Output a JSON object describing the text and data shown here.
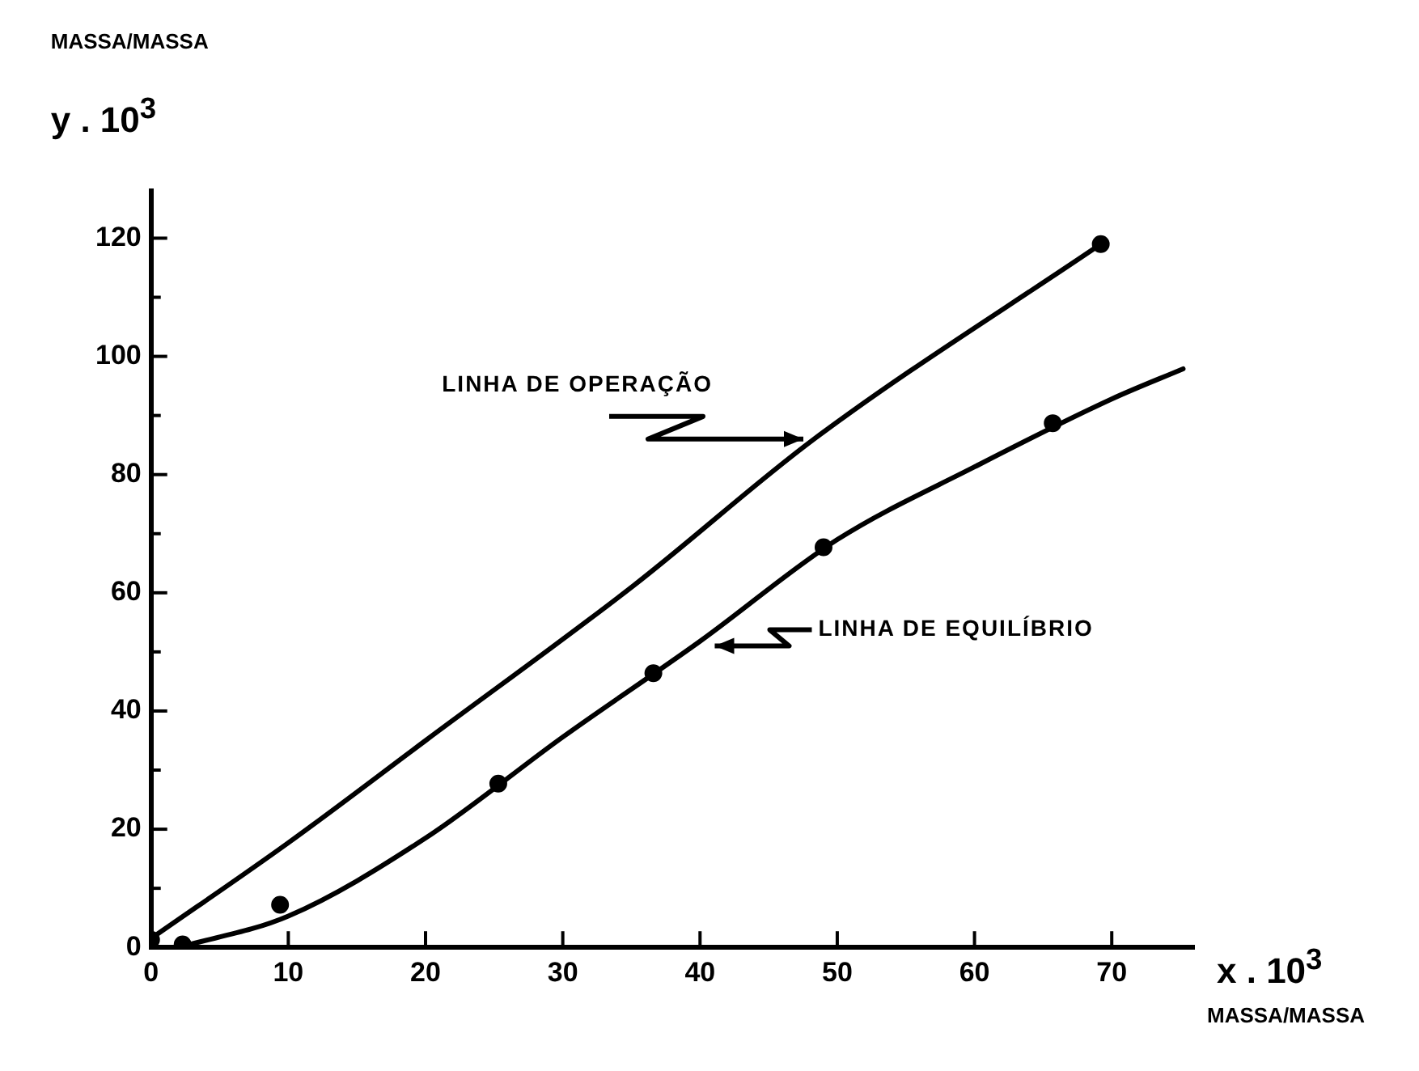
{
  "chart_data": {
    "type": "line",
    "xlabel": "x . 10$^{3}$",
    "ylabel": "y . 10$^{3}$",
    "annotations": [
      "MASSA/MASSA",
      "MASSA/MASSA",
      {
        "text": "LINHA DE OPERAÇÃO",
        "x": 48,
        "y": 86
      },
      {
        "text": "LINHA DE EQUILÍBRIO",
        "x": 40.6,
        "y": 51
      }
    ],
    "series": [
      {
        "type": "line",
        "color": "#000000",
        "x": [
          0,
          10,
          20,
          35.2,
          48.3,
          69.2
        ],
        "values": [
          1.5,
          17.7,
          35,
          61.3,
          86,
          119
        ]
      },
      {
        "type": "line",
        "color": "#000000",
        "x": [
          2,
          10,
          20,
          30,
          40,
          50,
          60,
          70,
          75.2
        ],
        "values": [
          0,
          5.3,
          18.5,
          35.6,
          51.8,
          69,
          81.3,
          92.8,
          97.9
        ]
      },
      {
        "type": "scatter",
        "color": "#000000",
        "marker": "circle",
        "x": [
          0,
          2.3,
          9.4,
          25.3,
          36.6,
          49,
          65.7,
          69.2
        ],
        "values": [
          1.3,
          0.5,
          7.2,
          27.7,
          46.4,
          67.7,
          88.7,
          119
        ]
      }
    ],
    "xlim": [
      0,
      76
    ],
    "ylim": [
      0,
      128
    ],
    "xticks": [
      0,
      10,
      20,
      30,
      40,
      50,
      60,
      70
    ],
    "yticks": [
      0,
      {
        "value": 10,
        "label": null
      },
      20,
      {
        "value": 30,
        "label": null
      },
      40,
      {
        "value": 50,
        "label": null
      },
      60,
      {
        "value": 70,
        "label": null
      },
      80,
      {
        "value": 90,
        "label": null
      },
      100,
      {
        "value": 110,
        "label": null
      },
      120
    ],
    "grid": false,
    "legend": false
  }
}
